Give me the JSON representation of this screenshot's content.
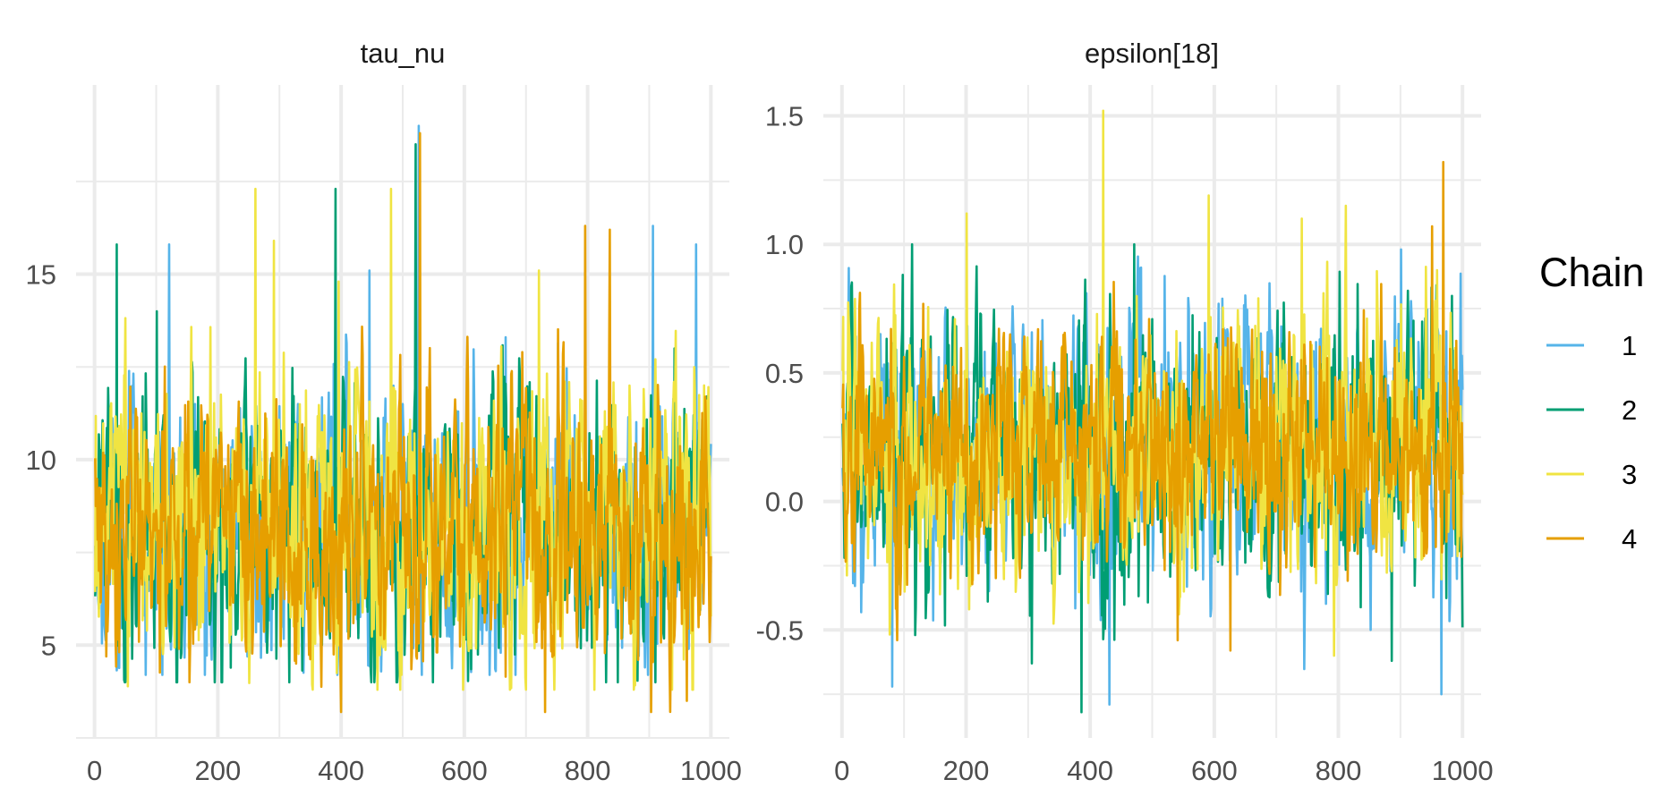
{
  "chart_data": [
    {
      "type": "line",
      "title": "tau_nu",
      "xlabel": "",
      "ylabel": "",
      "xlim": [
        -30,
        1030
      ],
      "ylim": [
        2.5,
        20.1
      ],
      "x_ticks": [
        0,
        200,
        400,
        600,
        800,
        1000
      ],
      "x_tick_labels": [
        "0",
        "200",
        "400",
        "600",
        "800",
        "1000"
      ],
      "y_ticks": [
        5,
        10,
        15
      ],
      "y_tick_labels": [
        "5",
        "10",
        "15"
      ],
      "y_minor": [
        2.5,
        7.5,
        12.5,
        17.5
      ],
      "grid": true,
      "iterations": 1000,
      "series": [
        {
          "name": "1",
          "color": "#56B4E9",
          "center": 8.1,
          "spread": 1.9,
          "min": 4.2,
          "max": 19.0,
          "seed": 11,
          "spikes": [
            [
              120,
              15.8
            ],
            [
              525,
              19.0
            ],
            [
              905,
              16.3
            ],
            [
              975,
              15.8
            ],
            [
              445,
              15.1
            ]
          ]
        },
        {
          "name": "2",
          "color": "#009E73",
          "center": 8.0,
          "spread": 1.9,
          "min": 4.0,
          "max": 18.0,
          "seed": 23,
          "spikes": [
            [
              35,
              15.8
            ],
            [
              390,
              17.3
            ],
            [
              520,
              18.5
            ],
            [
              100,
              14.0
            ],
            [
              940,
              13.0
            ]
          ]
        },
        {
          "name": "3",
          "color": "#F0E442",
          "center": 8.2,
          "spread": 2.0,
          "min": 3.8,
          "max": 18.0,
          "seed": 37,
          "spikes": [
            [
              260,
              17.3
            ],
            [
              480,
              17.3
            ],
            [
              290,
              15.9
            ],
            [
              720,
              15.1
            ],
            [
              395,
              14.8
            ]
          ]
        },
        {
          "name": "4",
          "color": "#E69F00",
          "center": 8.0,
          "spread": 1.8,
          "min": 3.2,
          "max": 18.8,
          "seed": 53,
          "spikes": [
            [
              527,
              18.8
            ],
            [
              795,
              16.3
            ],
            [
              835,
              16.2
            ],
            [
              730,
              3.2
            ],
            [
              960,
              3.5
            ]
          ]
        }
      ]
    },
    {
      "type": "line",
      "title": "epsilon[18]",
      "xlabel": "",
      "ylabel": "",
      "xlim": [
        -30,
        1030
      ],
      "ylim": [
        -0.92,
        1.62
      ],
      "x_ticks": [
        0,
        200,
        400,
        600,
        800,
        1000
      ],
      "x_tick_labels": [
        "0",
        "200",
        "400",
        "600",
        "800",
        "1000"
      ],
      "y_ticks": [
        -0.5,
        0.0,
        0.5,
        1.0,
        1.5
      ],
      "y_tick_labels": [
        "-0.5",
        "0.0",
        "0.5",
        "1.0",
        "1.5"
      ],
      "y_minor": [
        -0.75,
        -0.25,
        0.25,
        0.75,
        1.25
      ],
      "grid": true,
      "iterations": 1000,
      "series": [
        {
          "name": "1",
          "color": "#56B4E9",
          "center": 0.2,
          "spread": 0.27,
          "min": -0.8,
          "max": 1.0,
          "seed": 71,
          "spikes": [
            [
              80,
              -0.72
            ],
            [
              430,
              -0.79
            ],
            [
              965,
              -0.75
            ],
            [
              900,
              0.98
            ]
          ]
        },
        {
          "name": "2",
          "color": "#009E73",
          "center": 0.18,
          "spread": 0.27,
          "min": -0.82,
          "max": 1.0,
          "seed": 83,
          "spikes": [
            [
              385,
              -0.82
            ],
            [
              470,
              1.0
            ],
            [
              885,
              -0.62
            ],
            [
              305,
              -0.63
            ]
          ]
        },
        {
          "name": "3",
          "color": "#F0E442",
          "center": 0.2,
          "spread": 0.27,
          "min": -0.6,
          "max": 1.52,
          "seed": 97,
          "spikes": [
            [
              420,
              1.52
            ],
            [
              200,
              1.12
            ],
            [
              740,
              1.1
            ],
            [
              590,
              1.19
            ]
          ]
        },
        {
          "name": "4",
          "color": "#E69F00",
          "center": 0.2,
          "spread": 0.25,
          "min": -0.6,
          "max": 1.32,
          "seed": 109,
          "spikes": [
            [
              968,
              1.32
            ],
            [
              625,
              -0.58
            ],
            [
              540,
              -0.54
            ],
            [
              950,
              1.07
            ]
          ]
        }
      ]
    }
  ],
  "legend": {
    "title": "Chain",
    "placement": "right",
    "items": [
      {
        "label": "1",
        "color": "#56B4E9"
      },
      {
        "label": "2",
        "color": "#009E73"
      },
      {
        "label": "3",
        "color": "#F0E442"
      },
      {
        "label": "4",
        "color": "#E69F00"
      }
    ]
  }
}
